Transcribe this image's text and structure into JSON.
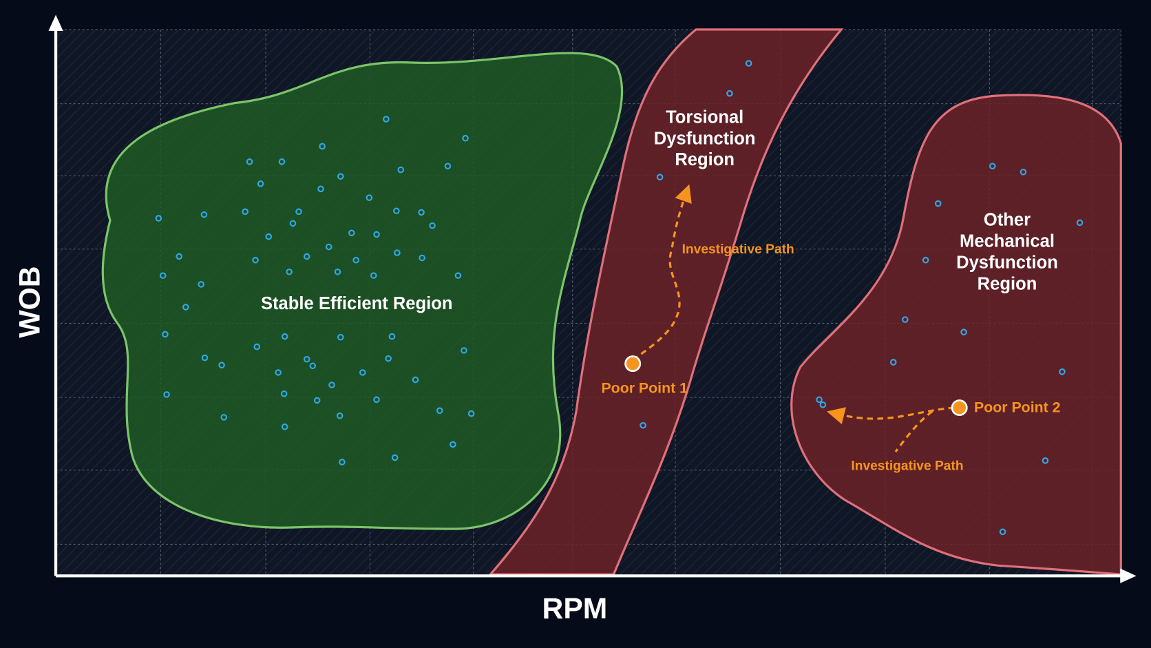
{
  "axes": {
    "x_label": "RPM",
    "y_label": "WOB"
  },
  "regions": [
    {
      "lines": [
        "Stable Efficient Region"
      ]
    },
    {
      "lines": [
        "Torsional",
        "Dysfunction",
        "Region"
      ]
    },
    {
      "lines": [
        "Other",
        "Mechanical",
        "Dysfunction",
        "Region"
      ]
    }
  ],
  "points": [
    {
      "label": "Poor Point 1",
      "path_label": "Investigative Path"
    },
    {
      "label": "Poor Point 2",
      "path_label": "Investigative Path"
    }
  ]
}
